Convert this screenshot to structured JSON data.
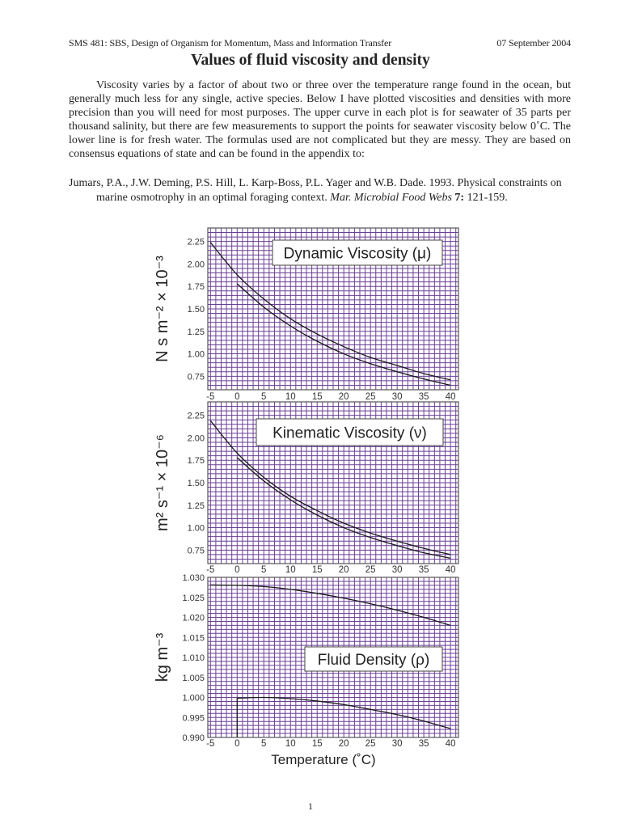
{
  "header": {
    "course": "SMS 481: SBS, Design of Organism for Momentum, Mass and Information Transfer",
    "date": "07 September 2004"
  },
  "title": "Values of fluid viscosity and density",
  "body": {
    "paragraph": "Viscosity varies by a factor of about two or three over the temperature range found in the ocean, but generally much less for any single, active species.  Below I have plotted viscosities and densities with more precision than you will need for most purposes.  The upper curve in each plot is for seawater of 35 parts per thousand salinity, but there are few measurements to support the points for seawater viscosity below 0˚C.  The lower line is for fresh water.  The formulas used are not complicated but they are messy.  They are based on consensus equations of state and can be found in the appendix to:",
    "citation": {
      "authors": "Jumars, P.A., J.W. Deming, P.S. Hill, L. Karp-Boss, P.L. Yager and W.B. Dade. 1993. Physical constraints on marine osmotrophy in an optimal foraging context. ",
      "journal": "Mar. Microbial Food Webs",
      "volume": "7:",
      "pages": " 121-159."
    }
  },
  "page_number": "1",
  "colors": {
    "grid": "#6b3f98",
    "curve": "#1a1a1a",
    "text": "#222222"
  },
  "chart_data": [
    {
      "type": "line",
      "title": "Dynamic Viscosity (μ)",
      "ylabel": "N s m⁻² × 10⁻³",
      "xlabel": "",
      "xlim": [
        -5.5,
        41.5
      ],
      "ylim": [
        0.6,
        2.4
      ],
      "grid": true,
      "x_ticks": [
        "-5",
        "0",
        "5",
        "10",
        "15",
        "20",
        "25",
        "30",
        "35",
        "40"
      ],
      "y_ticks": [
        "0.75",
        "1.00",
        "1.25",
        "1.50",
        "1.75",
        "2.00",
        "2.25"
      ],
      "series": [
        {
          "x": [
            -5,
            0,
            5,
            10,
            15,
            20,
            25,
            30,
            35,
            40
          ],
          "values": [
            2.24,
            1.88,
            1.61,
            1.39,
            1.22,
            1.08,
            0.96,
            0.87,
            0.78,
            0.71
          ]
        },
        {
          "x": [
            0,
            5,
            10,
            15,
            20,
            25,
            30,
            35,
            40
          ],
          "values": [
            1.78,
            1.52,
            1.31,
            1.14,
            1.0,
            0.89,
            0.8,
            0.72,
            0.65
          ]
        }
      ]
    },
    {
      "type": "line",
      "title": "Kinematic Viscosity (ν)",
      "ylabel": "m² s⁻¹ × 10⁻⁶",
      "xlabel": "",
      "xlim": [
        -5.5,
        41.5
      ],
      "ylim": [
        0.6,
        2.4
      ],
      "grid": true,
      "x_ticks": [
        "-5",
        "0",
        "5",
        "10",
        "15",
        "20",
        "25",
        "30",
        "35",
        "40"
      ],
      "y_ticks": [
        "0.75",
        "1.00",
        "1.25",
        "1.50",
        "1.75",
        "2.00",
        "2.25"
      ],
      "series": [
        {
          "x": [
            -5,
            0,
            5,
            10,
            15,
            20,
            25,
            30,
            35,
            40
          ],
          "values": [
            2.19,
            1.83,
            1.56,
            1.35,
            1.19,
            1.05,
            0.94,
            0.85,
            0.77,
            0.7
          ]
        },
        {
          "x": [
            0,
            5,
            10,
            15,
            20,
            25,
            30,
            35,
            40
          ],
          "values": [
            1.78,
            1.52,
            1.31,
            1.14,
            1.0,
            0.89,
            0.8,
            0.72,
            0.66
          ]
        }
      ]
    },
    {
      "type": "line",
      "title": "Fluid Density (ρ)",
      "ylabel": "kg m⁻³",
      "xlabel": "Temperature (˚C)",
      "xlim": [
        -5.5,
        41.5
      ],
      "ylim": [
        0.99,
        1.03
      ],
      "grid": true,
      "x_ticks": [
        "-5",
        "0",
        "5",
        "10",
        "15",
        "20",
        "25",
        "30",
        "35",
        "40"
      ],
      "y_ticks": [
        "0.990",
        "0.995",
        "1.000",
        "1.005",
        "1.010",
        "1.015",
        "1.020",
        "1.025",
        "1.030"
      ],
      "series": [
        {
          "x": [
            -5,
            0,
            5,
            10,
            15,
            20,
            25,
            30,
            35,
            40
          ],
          "values": [
            1.0281,
            1.028,
            1.0277,
            1.027,
            1.026,
            1.0248,
            1.0234,
            1.0218,
            1.02,
            1.018
          ]
        },
        {
          "x": [
            0,
            0,
            5,
            10,
            15,
            20,
            25,
            30,
            35,
            40
          ],
          "values": [
            0.99,
            0.9998,
            1.0,
            0.9997,
            0.9991,
            0.9982,
            0.997,
            0.9957,
            0.9941,
            0.9922
          ]
        }
      ]
    }
  ]
}
